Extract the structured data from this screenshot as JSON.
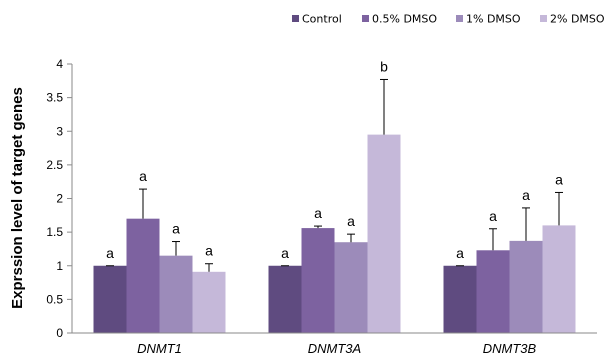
{
  "chart_data": {
    "type": "bar",
    "title": "",
    "xlabel": "",
    "ylabel": "Exprssion level of target genes",
    "categories": [
      "DNMT1",
      "DNMT3A",
      "DNMT3B"
    ],
    "ylim": [
      0,
      4
    ],
    "yticks": [
      "0",
      "0.5",
      "1",
      "1.5",
      "2",
      "2.5",
      "3",
      "3.5",
      "4"
    ],
    "legend_position": "top",
    "grid": false,
    "series": [
      {
        "name": "Control",
        "color": "#5f4b80",
        "values": [
          1.0,
          1.0,
          1.0
        ],
        "errors": [
          0.0,
          0.0,
          0.0
        ],
        "labels": [
          "a",
          "a",
          "a"
        ]
      },
      {
        "name": "0.5% DMSO",
        "color": "#7d62a0",
        "values": [
          1.7,
          1.56,
          1.23
        ],
        "errors": [
          0.44,
          0.03,
          0.32
        ],
        "labels": [
          "a",
          "a",
          "a"
        ]
      },
      {
        "name": "1% DMSO",
        "color": "#9c8bba",
        "values": [
          1.15,
          1.35,
          1.37
        ],
        "errors": [
          0.21,
          0.12,
          0.49
        ],
        "labels": [
          "a",
          "a",
          "a"
        ]
      },
      {
        "name": "2% DMSO",
        "color": "#c5b8d9",
        "values": [
          0.91,
          2.95,
          1.6
        ],
        "errors": [
          0.12,
          0.82,
          0.49
        ],
        "labels": [
          "a",
          "b",
          "a"
        ]
      }
    ]
  }
}
